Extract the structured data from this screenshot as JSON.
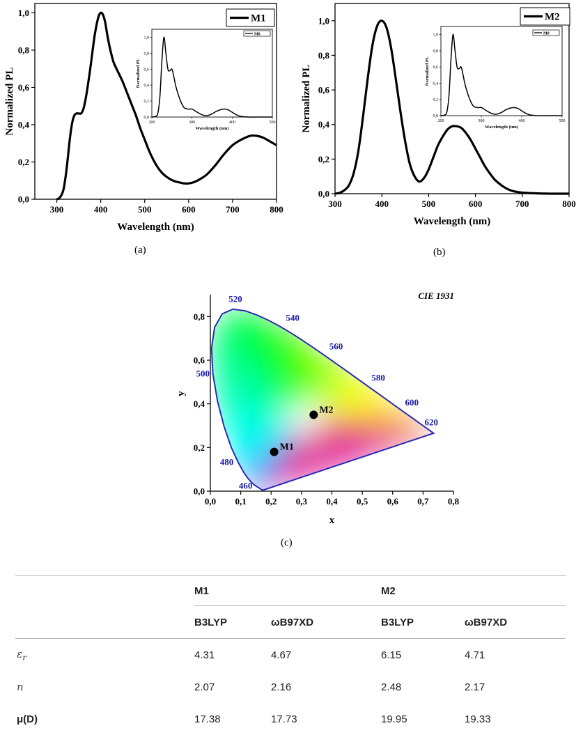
{
  "chart_data": [
    {
      "type": "line",
      "panel": "(a)",
      "xlabel": "Wavelength (nm)",
      "ylabel": "Normalized PL",
      "xlim": [
        250,
        800
      ],
      "ylim": [
        0,
        1.05
      ],
      "xticks": [
        "300",
        "400",
        "500",
        "600",
        "700",
        "800"
      ],
      "yticks": [
        "0,0",
        "0,2",
        "0,4",
        "0,6",
        "0,8",
        "1,0"
      ],
      "legend": "top-right",
      "series": [
        {
          "name": "M1",
          "x": [
            300,
            305,
            310,
            315,
            320,
            325,
            330,
            335,
            340,
            345,
            350,
            355,
            360,
            365,
            370,
            375,
            380,
            385,
            390,
            395,
            400,
            405,
            410,
            415,
            420,
            425,
            430,
            440,
            450,
            460,
            470,
            480,
            490,
            500,
            510,
            520,
            530,
            540,
            550,
            560,
            570,
            580,
            590,
            600,
            610,
            620,
            640,
            660,
            680,
            700,
            720,
            740,
            755,
            770,
            785,
            800
          ],
          "y": [
            0.0,
            0.005,
            0.02,
            0.05,
            0.12,
            0.22,
            0.33,
            0.41,
            0.45,
            0.46,
            0.46,
            0.46,
            0.48,
            0.53,
            0.6,
            0.68,
            0.77,
            0.86,
            0.93,
            0.98,
            1.0,
            0.99,
            0.95,
            0.88,
            0.82,
            0.77,
            0.73,
            0.68,
            0.63,
            0.57,
            0.51,
            0.45,
            0.38,
            0.32,
            0.26,
            0.21,
            0.17,
            0.14,
            0.12,
            0.105,
            0.095,
            0.09,
            0.085,
            0.085,
            0.09,
            0.1,
            0.13,
            0.18,
            0.24,
            0.29,
            0.32,
            0.34,
            0.34,
            0.33,
            0.31,
            0.29
          ]
        }
      ],
      "inset": {
        "xlabel": "Wavelength (nm)",
        "ylabel": "Normalized PL",
        "xlim": [
          200,
          500
        ],
        "ylim": [
          0,
          1.1
        ],
        "xticks": [
          "200",
          "300",
          "400",
          "500"
        ],
        "yticks": [
          "0,0",
          "0,2",
          "0,4",
          "0,6",
          "0,8",
          "1,0"
        ],
        "series": [
          {
            "name": "M0",
            "x": [
              200,
              210,
              215,
              220,
              225,
              230,
              235,
              240,
              245,
              250,
              255,
              260,
              270,
              280,
              290,
              300,
              310,
              320,
              330,
              340,
              350,
              360,
              370,
              380,
              390,
              400,
              410,
              420,
              440,
              460,
              480,
              500
            ],
            "y": [
              0.0,
              0.01,
              0.05,
              0.25,
              0.7,
              1.0,
              0.8,
              0.6,
              0.58,
              0.6,
              0.5,
              0.38,
              0.22,
              0.12,
              0.1,
              0.1,
              0.07,
              0.04,
              0.02,
              0.02,
              0.04,
              0.07,
              0.09,
              0.1,
              0.09,
              0.06,
              0.03,
              0.01,
              0.0,
              0.0,
              0.0,
              0.0
            ]
          }
        ]
      }
    },
    {
      "type": "line",
      "panel": "(b)",
      "xlabel": "Wavelength (nm)",
      "ylabel": "Normalized PL",
      "xlim": [
        300,
        800
      ],
      "ylim": [
        0,
        1.1
      ],
      "xticks": [
        "300",
        "400",
        "500",
        "600",
        "700",
        "800"
      ],
      "yticks": [
        "0,0",
        "0,2",
        "0,4",
        "0,6",
        "0,8",
        "1,0"
      ],
      "legend": "top-right",
      "series": [
        {
          "name": "M2",
          "x": [
            300,
            310,
            320,
            330,
            340,
            350,
            360,
            370,
            380,
            390,
            400,
            410,
            420,
            430,
            440,
            450,
            460,
            470,
            480,
            490,
            500,
            510,
            520,
            530,
            540,
            550,
            560,
            570,
            580,
            590,
            600,
            610,
            620,
            630,
            640,
            650,
            660,
            670,
            680,
            690,
            700,
            720,
            740,
            760,
            780,
            800
          ],
          "y": [
            0.0,
            0.005,
            0.02,
            0.05,
            0.12,
            0.25,
            0.45,
            0.67,
            0.86,
            0.97,
            1.0,
            0.96,
            0.84,
            0.66,
            0.47,
            0.3,
            0.17,
            0.1,
            0.07,
            0.09,
            0.14,
            0.21,
            0.28,
            0.33,
            0.37,
            0.39,
            0.39,
            0.38,
            0.35,
            0.31,
            0.26,
            0.21,
            0.16,
            0.12,
            0.085,
            0.06,
            0.04,
            0.025,
            0.015,
            0.01,
            0.006,
            0.003,
            0.001,
            0.0,
            0.0,
            0.0
          ]
        }
      ],
      "inset": {
        "xlabel": "Wavelength (nm)",
        "ylabel": "Normalized PL",
        "xlim": [
          200,
          500
        ],
        "ylim": [
          0,
          1.1
        ],
        "xticks": [
          "200",
          "300",
          "400",
          "500"
        ],
        "yticks": [
          "0,0",
          "0,2",
          "0,4",
          "0,6",
          "0,8",
          "1,0"
        ],
        "series": [
          {
            "name": "M0",
            "x": [
              200,
              210,
              215,
              220,
              225,
              230,
              235,
              240,
              245,
              250,
              255,
              260,
              270,
              280,
              290,
              300,
              310,
              320,
              330,
              340,
              350,
              360,
              370,
              380,
              390,
              400,
              410,
              420,
              440,
              460,
              480,
              500
            ],
            "y": [
              0.0,
              0.01,
              0.05,
              0.25,
              0.7,
              1.0,
              0.8,
              0.6,
              0.58,
              0.6,
              0.5,
              0.38,
              0.22,
              0.12,
              0.1,
              0.1,
              0.07,
              0.04,
              0.02,
              0.02,
              0.04,
              0.07,
              0.09,
              0.1,
              0.09,
              0.06,
              0.03,
              0.01,
              0.0,
              0.0,
              0.0,
              0.0
            ]
          }
        ]
      }
    },
    {
      "type": "scatter",
      "panel": "(c)",
      "title": "CIE 1931",
      "xlabel": "x",
      "ylabel": "y",
      "xlim": [
        0,
        0.8
      ],
      "ylim": [
        0,
        0.9
      ],
      "xticks": [
        "0,0",
        "0,1",
        "0,2",
        "0,3",
        "0,4",
        "0,5",
        "0,6",
        "0,7",
        "0,8"
      ],
      "yticks": [
        "0,0",
        "0,2",
        "0,4",
        "0,6",
        "0,8"
      ],
      "wavelength_labels": [
        {
          "label": "460",
          "x": 0.144,
          "y": 0.03
        },
        {
          "label": "480",
          "x": 0.091,
          "y": 0.133
        },
        {
          "label": "500",
          "x": 0.008,
          "y": 0.538
        },
        {
          "label": "520",
          "x": 0.074,
          "y": 0.834
        },
        {
          "label": "540",
          "x": 0.23,
          "y": 0.754
        },
        {
          "label": "560",
          "x": 0.373,
          "y": 0.624
        },
        {
          "label": "580",
          "x": 0.512,
          "y": 0.487
        },
        {
          "label": "600",
          "x": 0.627,
          "y": 0.373
        },
        {
          "label": "620",
          "x": 0.691,
          "y": 0.308
        }
      ],
      "points": [
        {
          "name": "M1",
          "x": 0.21,
          "y": 0.18
        },
        {
          "name": "M2",
          "x": 0.34,
          "y": 0.35
        }
      ]
    }
  ],
  "captions": [
    "(a)",
    "(b)",
    "(c)"
  ],
  "table": {
    "groups": [
      "M1",
      "M2"
    ],
    "methods": [
      "B3LYP",
      "ωB97XD",
      "B3LYP",
      "ωB97XD"
    ],
    "rows": [
      {
        "label_base": "ε",
        "label_sub": "r",
        "values": [
          "4.31",
          "4.67",
          "6.15",
          "4.71"
        ]
      },
      {
        "label": "n",
        "values": [
          "2.07",
          "2.16",
          "2.48",
          "2.17"
        ]
      },
      {
        "label": "μ(D)",
        "values": [
          "17.38",
          "17.73",
          "19.95",
          "19.33"
        ]
      }
    ]
  }
}
